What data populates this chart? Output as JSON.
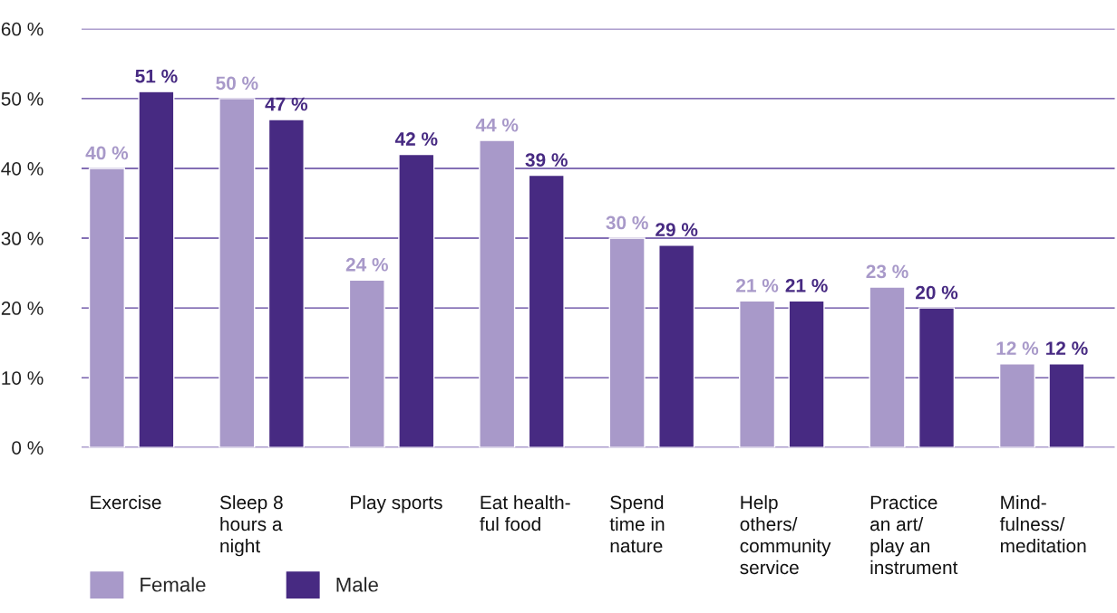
{
  "chart_data": {
    "type": "bar",
    "categories": [
      "Exercise",
      "Sleep 8\nhours a\nnight",
      "Play sports",
      "Eat health-\nful food",
      "Spend\ntime in\nnature",
      "Help\nothers/\ncommunity\nservice",
      "Practice\nan art/\nplay an\ninstrument",
      "Mind-\nfulness/\nmeditation"
    ],
    "series": [
      {
        "name": "Female",
        "color": "#a899c9",
        "values": [
          40,
          50,
          24,
          44,
          30,
          21,
          23,
          12
        ],
        "value_labels": [
          "40 %",
          "50 %",
          "24 %",
          "44 %",
          "30 %",
          "21 %",
          "23 %",
          "12 %"
        ]
      },
      {
        "name": "Male",
        "color": "#472a82",
        "values": [
          51,
          47,
          42,
          39,
          29,
          21,
          20,
          12
        ],
        "value_labels": [
          "51 %",
          "47 %",
          "42 %",
          "39 %",
          "29 %",
          "21 %",
          "20 %",
          "12 %"
        ]
      }
    ],
    "ylim": [
      0,
      60
    ],
    "yticks": [
      {
        "value": 0,
        "label": "0 %"
      },
      {
        "value": 10,
        "label": "10 %"
      },
      {
        "value": 20,
        "label": "20 %"
      },
      {
        "value": 30,
        "label": "30 %"
      },
      {
        "value": 40,
        "label": "40 %"
      },
      {
        "value": 50,
        "label": "50 %"
      },
      {
        "value": 60,
        "label": "60 %"
      }
    ],
    "grid": "y",
    "legend": "bottom left"
  }
}
